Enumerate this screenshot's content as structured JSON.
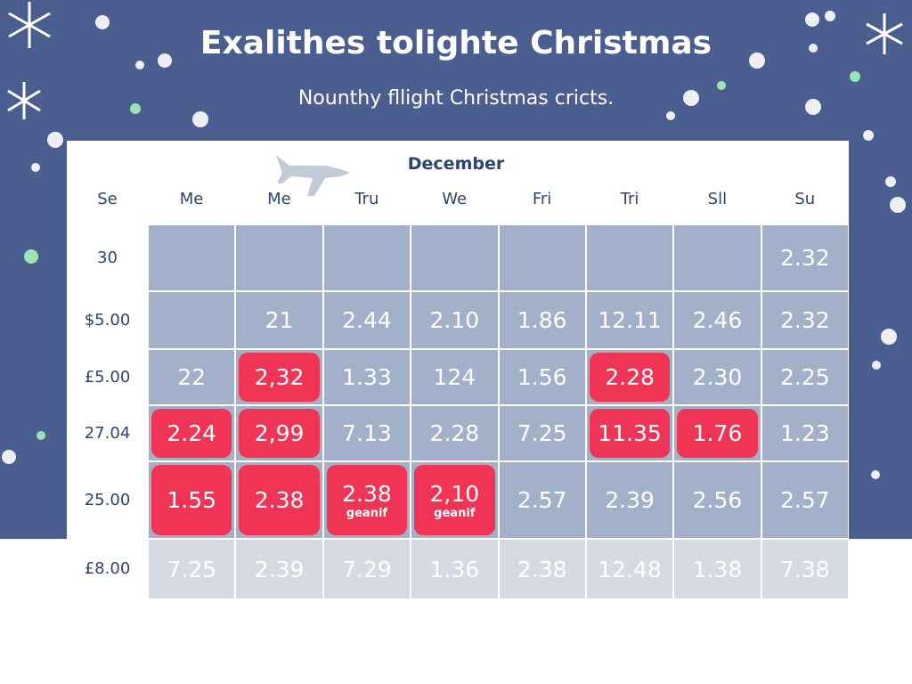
{
  "header": {
    "title": "Exalithes tolighte Christmas",
    "subtitle": "Nounthy fllight Christmas cricts."
  },
  "table": {
    "month": "December",
    "columns": [
      "Se",
      "Me",
      "Me",
      "Tru",
      "We",
      "Fri",
      "Tri",
      "Sll",
      "Su"
    ],
    "rows": [
      {
        "label": "30",
        "cells": [
          null,
          null,
          null,
          null,
          null,
          null,
          null,
          "2.32"
        ]
      },
      {
        "label": "$5.00",
        "cells": [
          null,
          "21",
          "2.44",
          "2.10",
          "1.86",
          "12.11",
          "2.46",
          "2.32"
        ]
      },
      {
        "label": "£5.00",
        "cells": [
          "22",
          "2,32",
          "1.33",
          "124",
          "1.56",
          "2.28",
          "2.30",
          "2.25"
        ]
      },
      {
        "label": "27.04",
        "cells": [
          "2.24",
          "2,99",
          "7.13",
          "2.28",
          "7.25",
          "11.35",
          "1.76",
          "1.23"
        ]
      },
      {
        "label": "25.00",
        "cells": [
          "1.55",
          "2.38",
          "2.38",
          "2,10",
          "2.57",
          "2.39",
          "2.56",
          "2.57"
        ]
      },
      {
        "label": "£8.00",
        "cells": [
          "7.25",
          "2.39",
          "7.29",
          "1.36",
          "2.38",
          "12.48",
          "1.38",
          "7.38"
        ]
      }
    ],
    "highlighted": [
      [
        2,
        1
      ],
      [
        2,
        5
      ],
      [
        3,
        0
      ],
      [
        3,
        1
      ],
      [
        3,
        5
      ],
      [
        3,
        6
      ],
      [
        4,
        0
      ],
      [
        4,
        1
      ],
      [
        4,
        2
      ],
      [
        4,
        3
      ]
    ],
    "notes": [
      {
        "row": 4,
        "col": 2,
        "text": "geanif"
      },
      {
        "row": 4,
        "col": 3,
        "text": "geanif"
      }
    ]
  }
}
